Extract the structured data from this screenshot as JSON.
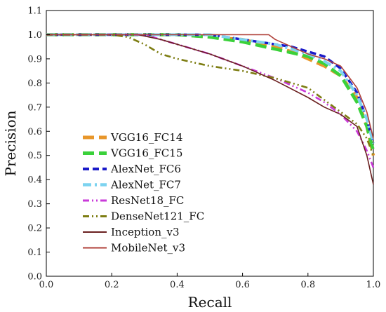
{
  "chart_data": {
    "type": "line",
    "title": "",
    "xlabel": "Recall",
    "ylabel": "Precision",
    "xlim": [
      0.0,
      1.0
    ],
    "ylim": [
      0.0,
      1.1
    ],
    "xticks": [
      "0.0",
      "0.2",
      "0.4",
      "0.6",
      "0.8",
      "1.0"
    ],
    "yticks": [
      "0.0",
      "0.1",
      "0.2",
      "0.3",
      "0.4",
      "0.5",
      "0.6",
      "0.7",
      "0.8",
      "0.9",
      "1.0",
      "1.1"
    ],
    "grid": false,
    "legend_position": "center-left",
    "series": [
      {
        "name": "VGG16_FC14",
        "color": "#e8962a",
        "dash": "long-dash",
        "x": [
          0.0,
          0.2,
          0.4,
          0.5,
          0.6,
          0.7,
          0.75,
          0.8,
          0.85,
          0.9,
          0.95,
          0.98,
          1.0
        ],
        "y": [
          1.0,
          1.0,
          1.0,
          0.99,
          0.98,
          0.95,
          0.93,
          0.9,
          0.87,
          0.83,
          0.74,
          0.62,
          0.5
        ]
      },
      {
        "name": "VGG16_FC15",
        "color": "#3ad13a",
        "dash": "long-dash",
        "x": [
          0.0,
          0.2,
          0.4,
          0.5,
          0.6,
          0.7,
          0.8,
          0.85,
          0.9,
          0.95,
          0.98,
          1.0
        ],
        "y": [
          1.0,
          1.0,
          1.0,
          0.99,
          0.97,
          0.94,
          0.91,
          0.88,
          0.83,
          0.72,
          0.62,
          0.52
        ]
      },
      {
        "name": "AlexNet_FC6",
        "color": "#1a1ac9",
        "dash": "dash",
        "x": [
          0.0,
          0.2,
          0.4,
          0.5,
          0.6,
          0.7,
          0.75,
          0.8,
          0.85,
          0.9,
          0.95,
          0.98,
          1.0
        ],
        "y": [
          1.0,
          1.0,
          1.0,
          1.0,
          0.98,
          0.96,
          0.95,
          0.93,
          0.91,
          0.86,
          0.76,
          0.65,
          0.55
        ]
      },
      {
        "name": "AlexNet_FC7",
        "color": "#7dd3f0",
        "dash": "dash-dot",
        "x": [
          0.0,
          0.2,
          0.4,
          0.5,
          0.6,
          0.7,
          0.8,
          0.85,
          0.9,
          0.95,
          0.98,
          1.0
        ],
        "y": [
          1.0,
          1.0,
          1.0,
          1.0,
          0.98,
          0.96,
          0.92,
          0.89,
          0.85,
          0.75,
          0.65,
          0.55
        ]
      },
      {
        "name": "ResNet18_FC",
        "color": "#c93ad9",
        "dash": "dash-dot-dot",
        "x": [
          0.0,
          0.2,
          0.3,
          0.35,
          0.4,
          0.45,
          0.5,
          0.6,
          0.7,
          0.8,
          0.85,
          0.9,
          0.95,
          0.98,
          1.0
        ],
        "y": [
          1.0,
          1.0,
          1.0,
          0.98,
          0.96,
          0.94,
          0.92,
          0.87,
          0.82,
          0.76,
          0.72,
          0.67,
          0.6,
          0.52,
          0.45
        ]
      },
      {
        "name": "DenseNet121_FC",
        "color": "#7d7d12",
        "dash": "dash-dot-dot",
        "x": [
          0.0,
          0.2,
          0.25,
          0.3,
          0.35,
          0.4,
          0.5,
          0.6,
          0.7,
          0.75,
          0.8,
          0.85,
          0.9,
          0.95,
          0.98,
          1.0
        ],
        "y": [
          1.0,
          1.0,
          0.99,
          0.96,
          0.92,
          0.9,
          0.87,
          0.85,
          0.82,
          0.8,
          0.78,
          0.73,
          0.68,
          0.63,
          0.57,
          0.5
        ]
      },
      {
        "name": "Inception_v3",
        "color": "#6a1f1f",
        "dash": "solid",
        "x": [
          0.0,
          0.2,
          0.28,
          0.35,
          0.4,
          0.45,
          0.5,
          0.6,
          0.7,
          0.8,
          0.85,
          0.9,
          0.95,
          0.98,
          1.0
        ],
        "y": [
          1.0,
          1.0,
          1.0,
          0.98,
          0.96,
          0.94,
          0.92,
          0.87,
          0.81,
          0.74,
          0.7,
          0.67,
          0.62,
          0.5,
          0.38
        ]
      },
      {
        "name": "MobileNet_v3",
        "color": "#b0413a",
        "dash": "solid",
        "x": [
          0.0,
          0.2,
          0.4,
          0.5,
          0.6,
          0.68,
          0.7,
          0.75,
          0.8,
          0.85,
          0.9,
          0.95,
          0.98,
          1.0
        ],
        "y": [
          1.0,
          1.0,
          1.0,
          1.0,
          1.0,
          1.0,
          0.98,
          0.95,
          0.92,
          0.9,
          0.87,
          0.78,
          0.68,
          0.57
        ]
      }
    ]
  }
}
